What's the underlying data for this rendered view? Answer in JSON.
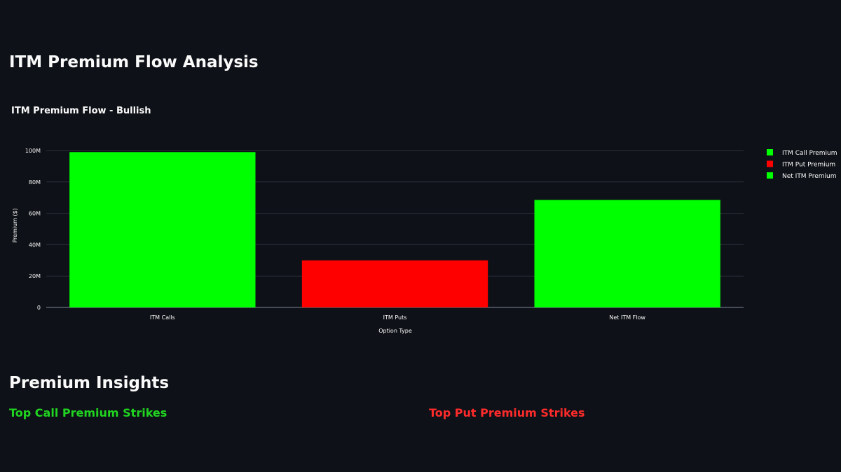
{
  "page": {
    "title": "ITM Premium Flow Analysis",
    "insights_title": "Premium Insights",
    "calls_section_title": "Top Call Premium Strikes",
    "puts_section_title": "Top Put Premium Strikes"
  },
  "colors": {
    "call": "#00ff00",
    "put": "#ff0000",
    "net": "#00ff00",
    "calls_heading": "#21d421",
    "puts_heading": "#ff2b2b"
  },
  "chart_data": {
    "type": "bar",
    "title": "ITM Premium Flow - Bullish",
    "xlabel": "Option Type",
    "ylabel": "Premium ($)",
    "categories": [
      "ITM Calls",
      "ITM Puts",
      "Net ITM Flow"
    ],
    "series": [
      {
        "name": "ITM Call Premium",
        "category": "ITM Calls",
        "value": 99000000,
        "color": "#00ff00"
      },
      {
        "name": "ITM Put Premium",
        "category": "ITM Puts",
        "value": 30000000,
        "color": "#ff0000"
      },
      {
        "name": "Net ITM Premium",
        "category": "Net ITM Flow",
        "value": 68500000,
        "color": "#00ff00"
      }
    ],
    "ylim": [
      0,
      100000000
    ],
    "yticks": [
      0,
      20000000,
      40000000,
      60000000,
      80000000,
      100000000
    ],
    "ytick_labels": [
      "0",
      "20M",
      "40M",
      "60M",
      "80M",
      "100M"
    ],
    "grid": true,
    "legend_position": "right"
  }
}
